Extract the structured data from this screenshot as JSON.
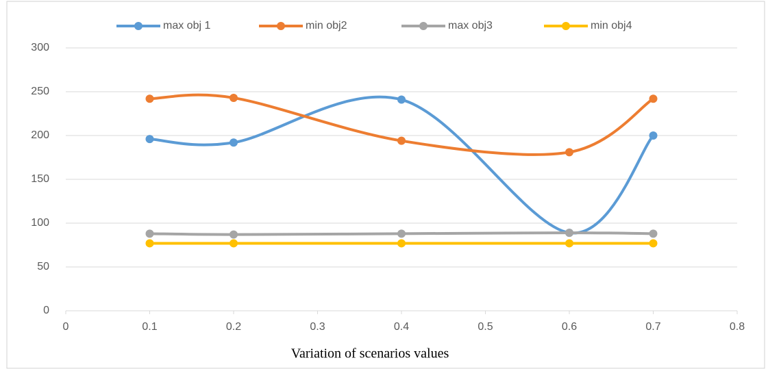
{
  "chart_data": {
    "type": "line",
    "x": [
      0.1,
      0.2,
      0.4,
      0.6,
      0.7
    ],
    "series": [
      {
        "name": "max obj 1",
        "color": "#5b9bd5",
        "values": [
          196,
          192,
          241,
          89,
          200
        ]
      },
      {
        "name": "min obj2",
        "color": "#ed7d31",
        "values": [
          242,
          243,
          194,
          181,
          242
        ]
      },
      {
        "name": "max obj3",
        "color": "#a5a5a5",
        "values": [
          88,
          87,
          88,
          89,
          88
        ]
      },
      {
        "name": "min obj4",
        "color": "#ffc000",
        "values": [
          77,
          77,
          77,
          77,
          77
        ]
      }
    ],
    "xlim": [
      0,
      0.8
    ],
    "xticks": [
      0,
      0.1,
      0.2,
      0.3,
      0.4,
      0.5,
      0.6,
      0.7,
      0.8
    ],
    "ylim": [
      0,
      300
    ],
    "yticks": [
      0,
      50,
      100,
      150,
      200,
      250,
      300
    ],
    "grid": true,
    "smooth": true,
    "legend": "top",
    "xlabel": "Variation of scenarios values"
  }
}
